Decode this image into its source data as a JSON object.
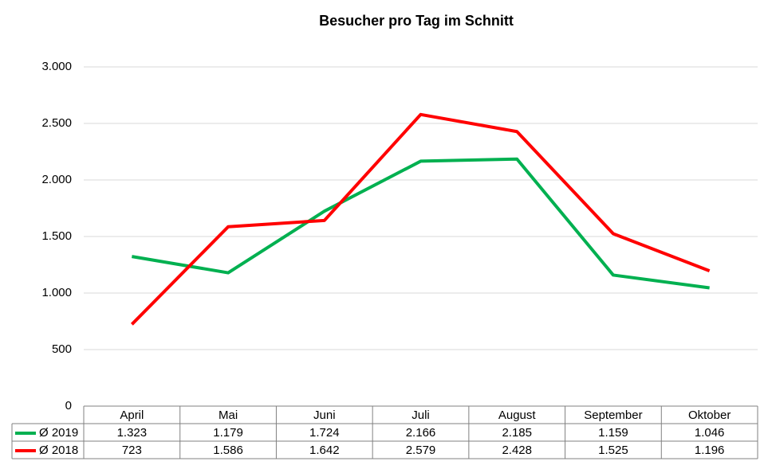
{
  "chart_data": {
    "type": "line",
    "title": "Besucher pro Tag im Schnitt",
    "categories": [
      "April",
      "Mai",
      "Juni",
      "Juli",
      "August",
      "September",
      "Oktober"
    ],
    "series": [
      {
        "name": "Ø 2019",
        "color": "#00b050",
        "values": [
          1323,
          1179,
          1724,
          2166,
          2185,
          1159,
          1046
        ],
        "value_labels": [
          "1.323",
          "1.179",
          "1.724",
          "2.166",
          "2.185",
          "1.159",
          "1.046"
        ]
      },
      {
        "name": "Ø 2018",
        "color": "#ff0000",
        "values": [
          723,
          1586,
          1642,
          2579,
          2428,
          1525,
          1196
        ],
        "value_labels": [
          "723",
          "1.586",
          "1.642",
          "2.579",
          "2.428",
          "1.525",
          "1.196"
        ]
      }
    ],
    "ylim": [
      0,
      3000
    ],
    "yticks": [
      0,
      500,
      {
        "value": 1000,
        "label": "1.000"
      },
      {
        "value": 1500,
        "label": "1.500"
      },
      {
        "value": 2000,
        "label": "2.000"
      },
      {
        "value": 2500,
        "label": "2.500"
      },
      {
        "value": 3000,
        "label": "3.000"
      }
    ],
    "grid": true,
    "legend": "table"
  }
}
